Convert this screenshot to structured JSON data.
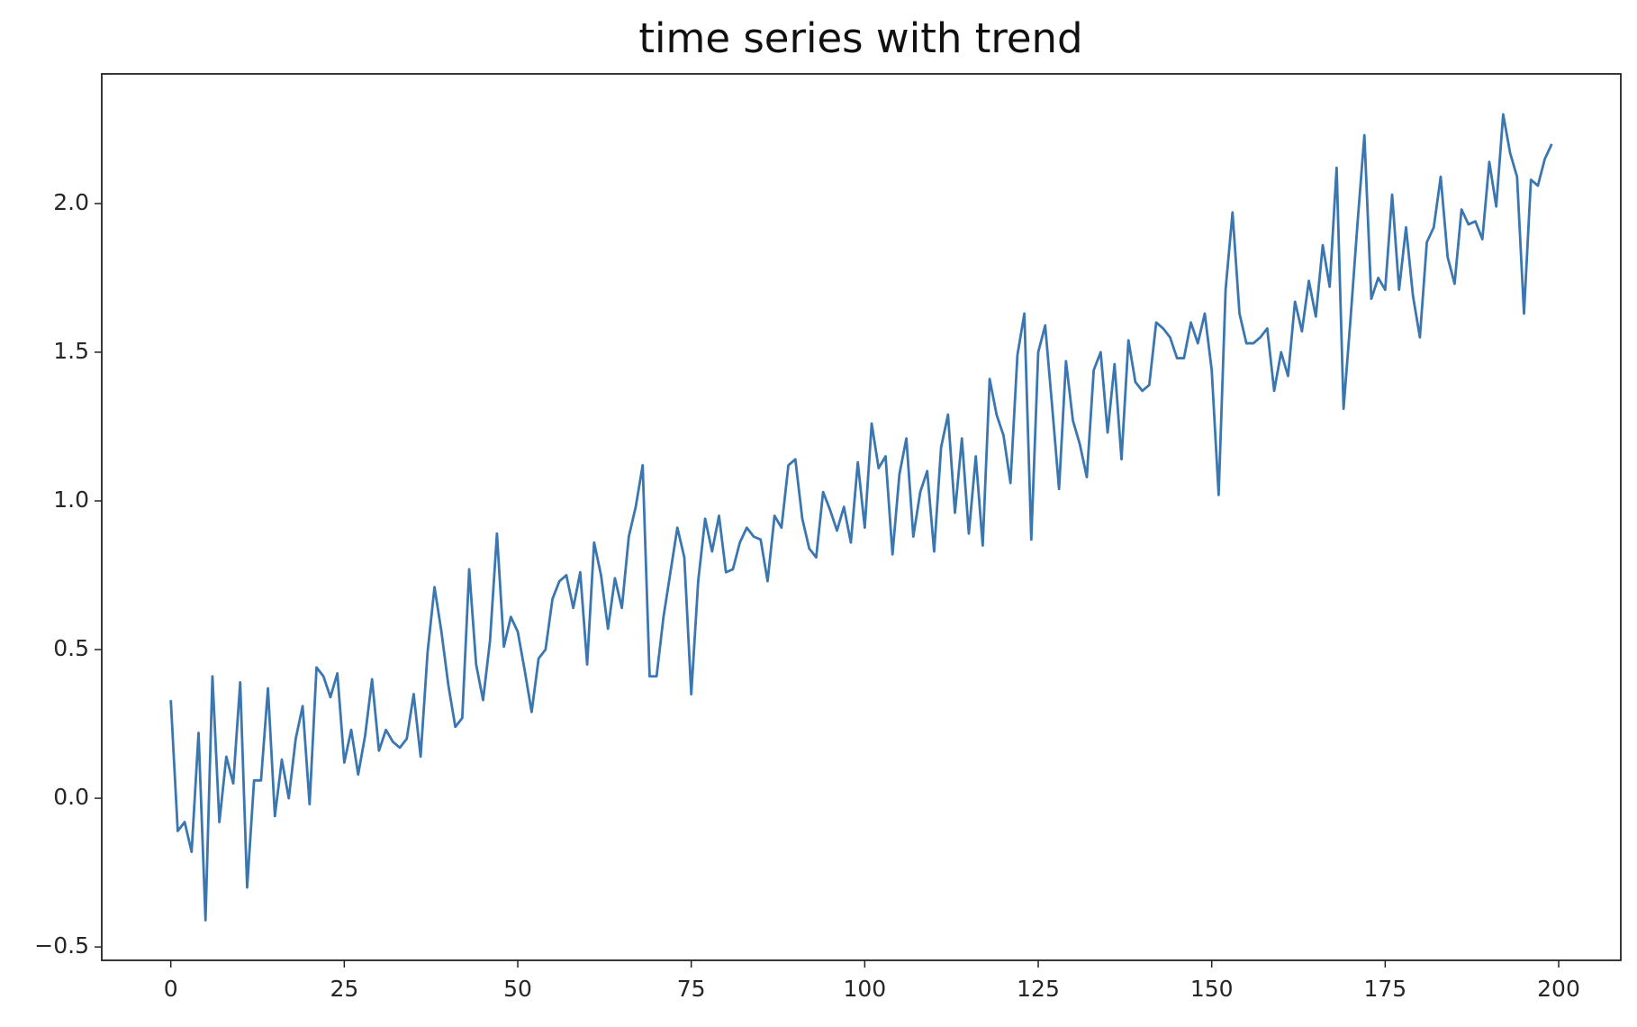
{
  "chart_data": {
    "type": "line",
    "title": "time series with trend",
    "x": [
      0,
      1,
      2,
      3,
      4,
      5,
      6,
      7,
      8,
      9,
      10,
      11,
      12,
      13,
      14,
      15,
      16,
      17,
      18,
      19,
      20,
      21,
      22,
      23,
      24,
      25,
      26,
      27,
      28,
      29,
      30,
      31,
      32,
      33,
      34,
      35,
      36,
      37,
      38,
      39,
      40,
      41,
      42,
      43,
      44,
      45,
      46,
      47,
      48,
      49,
      50,
      51,
      52,
      53,
      54,
      55,
      56,
      57,
      58,
      59,
      60,
      61,
      62,
      63,
      64,
      65,
      66,
      67,
      68,
      69,
      70,
      71,
      72,
      73,
      74,
      75,
      76,
      77,
      78,
      79,
      80,
      81,
      82,
      83,
      84,
      85,
      86,
      87,
      88,
      89,
      90,
      91,
      92,
      93,
      94,
      95,
      96,
      97,
      98,
      99,
      100,
      101,
      102,
      103,
      104,
      105,
      106,
      107,
      108,
      109,
      110,
      111,
      112,
      113,
      114,
      115,
      116,
      117,
      118,
      119,
      120,
      121,
      122,
      123,
      124,
      125,
      126,
      127,
      128,
      129,
      130,
      131,
      132,
      133,
      134,
      135,
      136,
      137,
      138,
      139,
      140,
      141,
      142,
      143,
      144,
      145,
      146,
      147,
      148,
      149,
      150,
      151,
      152,
      153,
      154,
      155,
      156,
      157,
      158,
      159,
      160,
      161,
      162,
      163,
      164,
      165,
      166,
      167,
      168,
      169,
      170,
      171,
      172,
      173,
      174,
      175,
      176,
      177,
      178,
      179,
      180,
      181,
      182,
      183,
      184,
      185,
      186,
      187,
      188,
      189,
      190,
      191,
      192,
      193,
      194,
      195,
      196,
      197,
      198,
      199
    ],
    "values": [
      0.33,
      -0.11,
      -0.08,
      -0.18,
      0.22,
      -0.41,
      0.41,
      -0.08,
      0.14,
      0.05,
      0.39,
      -0.3,
      0.06,
      0.06,
      0.37,
      -0.06,
      0.13,
      0.0,
      0.2,
      0.31,
      -0.02,
      0.44,
      0.41,
      0.34,
      0.42,
      0.12,
      0.23,
      0.08,
      0.21,
      0.4,
      0.16,
      0.23,
      0.19,
      0.17,
      0.2,
      0.35,
      0.14,
      0.49,
      0.71,
      0.56,
      0.38,
      0.24,
      0.27,
      0.77,
      0.45,
      0.33,
      0.53,
      0.89,
      0.51,
      0.61,
      0.56,
      0.43,
      0.29,
      0.47,
      0.5,
      0.67,
      0.73,
      0.75,
      0.64,
      0.76,
      0.45,
      0.86,
      0.75,
      0.57,
      0.74,
      0.64,
      0.88,
      0.98,
      1.12,
      0.41,
      0.41,
      0.61,
      0.76,
      0.91,
      0.81,
      0.35,
      0.73,
      0.94,
      0.83,
      0.95,
      0.76,
      0.77,
      0.86,
      0.91,
      0.88,
      0.87,
      0.73,
      0.95,
      0.91,
      1.12,
      1.14,
      0.94,
      0.84,
      0.81,
      1.03,
      0.97,
      0.9,
      0.98,
      0.86,
      1.13,
      0.91,
      1.26,
      1.11,
      1.15,
      0.82,
      1.09,
      1.21,
      0.88,
      1.03,
      1.1,
      0.83,
      1.18,
      1.29,
      0.96,
      1.21,
      0.89,
      1.15,
      0.85,
      1.41,
      1.29,
      1.22,
      1.06,
      1.49,
      1.63,
      0.87,
      1.5,
      1.59,
      1.32,
      1.04,
      1.47,
      1.27,
      1.19,
      1.08,
      1.44,
      1.5,
      1.23,
      1.46,
      1.14,
      1.54,
      1.4,
      1.37,
      1.39,
      1.6,
      1.58,
      1.55,
      1.48,
      1.48,
      1.6,
      1.53,
      1.63,
      1.44,
      1.02,
      1.71,
      1.97,
      1.63,
      1.53,
      1.53,
      1.55,
      1.58,
      1.37,
      1.5,
      1.42,
      1.67,
      1.57,
      1.74,
      1.62,
      1.86,
      1.72,
      2.12,
      1.31,
      1.61,
      1.93,
      2.23,
      1.68,
      1.75,
      1.71,
      2.03,
      1.71,
      1.92,
      1.69,
      1.55,
      1.87,
      1.92,
      2.09,
      1.82,
      1.73,
      1.98,
      1.93,
      1.94,
      1.88,
      2.14,
      1.99,
      2.3,
      2.17,
      2.09,
      1.63,
      2.08,
      2.06,
      2.15,
      2.2
    ],
    "color": "#3a76b0",
    "xlim": [
      -9.95,
      208.95
    ],
    "ylim": [
      -0.545,
      2.436
    ],
    "xticks": [
      0,
      25,
      50,
      75,
      100,
      125,
      150,
      175,
      200
    ],
    "yticks": [
      {
        "value": -0.5,
        "label": "−0.5"
      },
      {
        "value": 0,
        "label": "0.0"
      },
      {
        "value": 0.5,
        "label": "0.5"
      },
      {
        "value": 1,
        "label": "1.0"
      },
      {
        "value": 1.5,
        "label": "1.5"
      },
      {
        "value": 2,
        "label": "2.0"
      }
    ],
    "grid": false
  }
}
